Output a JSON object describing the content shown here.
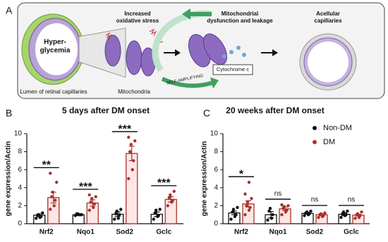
{
  "panel_labels": [
    "A",
    "B",
    "C"
  ],
  "diagram": {
    "hyperglycemia": [
      "Hyper-",
      "glycemia"
    ],
    "lumen": "Lumen of retinal capillaries",
    "mitochondria": "Mitochondria",
    "stress": [
      "Increased",
      "oxidative stress"
    ],
    "dysfunction": [
      "Mitochondrial",
      "dysfunction and leakage"
    ],
    "acellular": [
      "Acellular",
      "capillaries"
    ],
    "cytochrome": "Cytochrome c",
    "loop": "SELF-AMPLIFYING"
  },
  "chart_data": [
    {
      "type": "bar",
      "title": "5 days after  DM onset",
      "y_label": "gene expression/Actin",
      "categories": [
        "Nrf2",
        "Nqo1",
        "Sod2",
        "Gclc"
      ],
      "series": [
        {
          "color": "#111111",
          "fill": "#ffffff",
          "values": [
            0.95,
            1.0,
            1.05,
            1.05
          ],
          "errors": [
            0.15,
            0.1,
            0.25,
            0.25
          ],
          "points": [
            [
              0.6,
              0.7,
              0.8,
              0.9,
              1.0,
              1.2
            ],
            [
              0.9,
              1.0,
              1.0,
              1.1,
              1.1,
              1.0
            ],
            [
              0.5,
              0.6,
              1.0,
              1.1,
              1.4,
              1.6
            ],
            [
              0.5,
              0.8,
              0.9,
              1.2,
              1.5,
              1.6
            ]
          ]
        },
        {
          "color": "#a8332b",
          "fill": "#fde6e6",
          "values": [
            2.9,
            2.3,
            7.8,
            2.7
          ],
          "errors": [
            0.6,
            0.35,
            0.8,
            0.3
          ],
          "points": [
            [
              1.6,
              2.0,
              2.6,
              3.0,
              3.5,
              4.6,
              5.6
            ],
            [
              1.5,
              1.8,
              2.2,
              2.4,
              2.8,
              3.0,
              3.2
            ],
            [
              5.0,
              6.0,
              7.0,
              8.0,
              8.8,
              9.2,
              9.6
            ],
            [
              2.0,
              2.4,
              2.6,
              2.9,
              3.2,
              3.6
            ]
          ]
        }
      ],
      "annotations": [
        "**",
        "***",
        "***",
        "***"
      ],
      "ylim": [
        0,
        10
      ],
      "yticks": [
        0,
        2,
        4,
        6,
        8,
        10
      ]
    },
    {
      "type": "bar",
      "title": "20 weeks after DM onset",
      "y_label": "gene expression/Actin",
      "categories": [
        "Nrf2",
        "Nqo1",
        "Sod2",
        "Gclc"
      ],
      "series": [
        {
          "name": "Non-DM",
          "color": "#111111",
          "fill": "#ffffff",
          "values": [
            1.2,
            1.0,
            1.15,
            1.05
          ],
          "errors": [
            0.2,
            0.35,
            0.1,
            0.15
          ],
          "points": [
            [
              0.5,
              0.8,
              1.0,
              1.3,
              1.6,
              1.8
            ],
            [
              0.4,
              0.6,
              1.0,
              1.4,
              1.7
            ],
            [
              0.9,
              1.0,
              1.1,
              1.2,
              1.3,
              1.4
            ],
            [
              0.7,
              0.9,
              1.0,
              1.1,
              1.3,
              1.4
            ]
          ]
        },
        {
          "name": "DM",
          "color": "#a8332b",
          "fill": "#fde6e6",
          "values": [
            2.2,
            1.65,
            1.0,
            0.95
          ],
          "errors": [
            0.35,
            0.2,
            0.1,
            0.1
          ],
          "points": [
            [
              1.0,
              1.5,
              1.8,
              2.0,
              2.4,
              2.8,
              3.3,
              4.6
            ],
            [
              1.0,
              1.3,
              1.5,
              1.7,
              1.9,
              2.0,
              2.1
            ],
            [
              0.7,
              0.8,
              0.9,
              1.0,
              1.1,
              1.2
            ],
            [
              0.6,
              0.7,
              0.9,
              1.0,
              1.1,
              1.3
            ]
          ]
        }
      ],
      "annotations": [
        "*",
        "ns",
        "ns",
        "ns"
      ],
      "legend": "right",
      "ylim": [
        0,
        10
      ],
      "yticks": [
        0,
        2,
        4,
        6,
        8,
        10
      ]
    }
  ]
}
